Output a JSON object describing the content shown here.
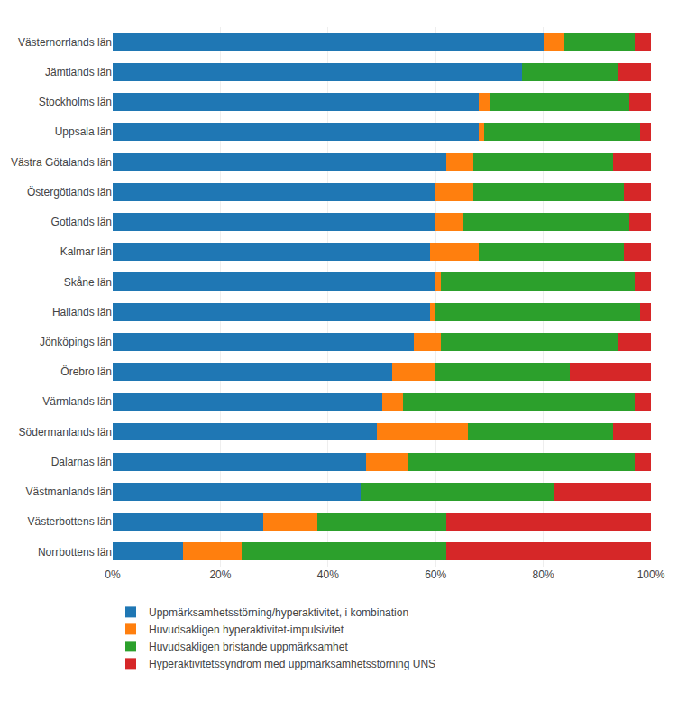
{
  "chart_data": {
    "type": "bar",
    "orientation": "horizontal",
    "stacked": true,
    "categories": [
      "Västernorrlands län",
      "Jämtlands län",
      "Stockholms län",
      "Uppsala län",
      "Västra Götalands län",
      "Östergötlands län",
      "Gotlands län",
      "Kalmar län",
      "Skåne län",
      "Hallands län",
      "Jönköpings län",
      "Örebro län",
      "Värmlands län",
      "Södermanlands län",
      "Dalarnas län",
      "Västmanlands län",
      "Västerbottens län",
      "Norrbottens län"
    ],
    "series": [
      {
        "name": "Uppmärksamhetsstörning/hyperaktivitet, i kombination",
        "values": [
          80,
          76,
          68,
          68,
          62,
          60,
          60,
          59,
          60,
          59,
          56,
          52,
          50,
          49,
          47,
          46,
          28,
          13
        ]
      },
      {
        "name": "Huvudsakligen hyperaktivitet-impulsivitet",
        "values": [
          4,
          0,
          2,
          1,
          5,
          7,
          5,
          9,
          1,
          1,
          5,
          8,
          4,
          17,
          8,
          0,
          10,
          11
        ]
      },
      {
        "name": "Huvudsakligen bristande uppmärksamhet",
        "values": [
          13,
          18,
          26,
          29,
          26,
          28,
          31,
          27,
          36,
          38,
          33,
          25,
          43,
          27,
          42,
          36,
          24,
          38
        ]
      },
      {
        "name": "Hyperaktivitetssyndrom med uppmärksamhetsstörning UNS",
        "values": [
          3,
          6,
          4,
          2,
          7,
          5,
          4,
          5,
          3,
          2,
          6,
          15,
          3,
          7,
          3,
          18,
          38,
          38
        ]
      }
    ],
    "xlim": [
      0,
      100
    ],
    "xticks": [
      {
        "value": 0,
        "label": "0%"
      },
      {
        "value": 20,
        "label": "20%"
      },
      {
        "value": 40,
        "label": "40%"
      },
      {
        "value": 60,
        "label": "60%"
      },
      {
        "value": 80,
        "label": "80%"
      },
      {
        "value": 100,
        "label": "100%"
      }
    ],
    "grid": true,
    "legend": "bottom"
  }
}
